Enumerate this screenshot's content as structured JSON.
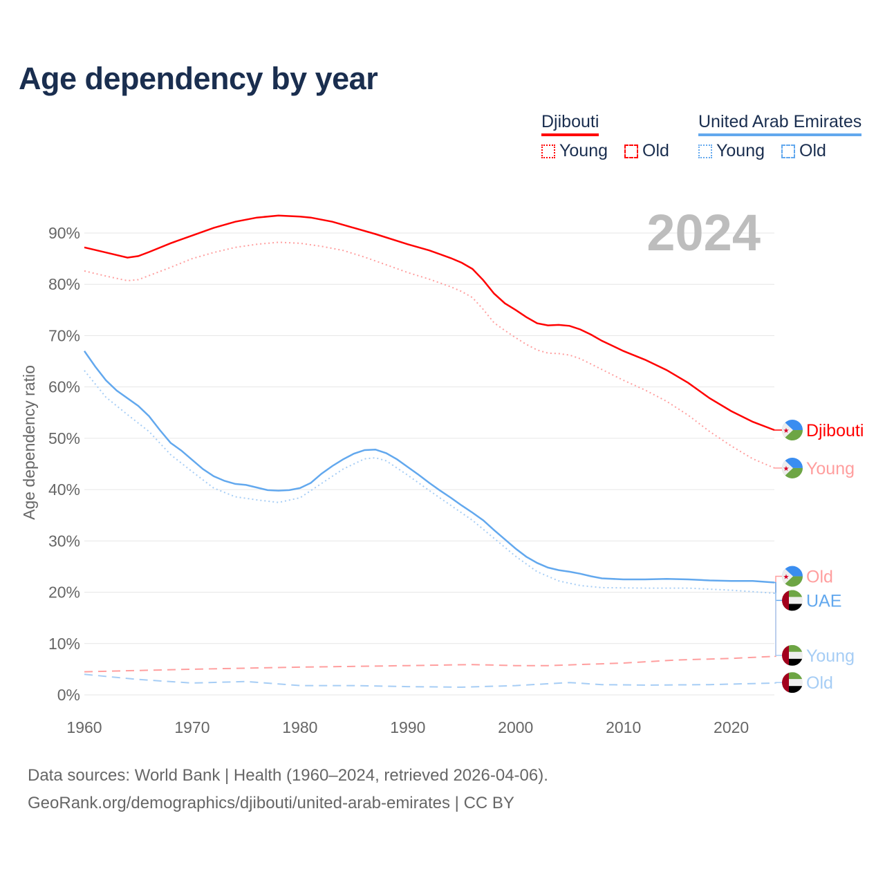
{
  "title": "Age dependency by year",
  "legend": {
    "countries": [
      {
        "name": "Djibouti",
        "color": "#ff0000",
        "items": [
          "Young",
          "Old"
        ]
      },
      {
        "name": "United Arab Emirates",
        "color": "#62a8ee",
        "items": [
          "Young",
          "Old"
        ]
      }
    ]
  },
  "footer": {
    "line1": "Data sources: World Bank | Health (1960–2024, retrieved 2026-04-06).",
    "line2": "GeoRank.org/demographics/djibouti/united-arab-emirates | CC BY"
  },
  "chart_data": {
    "type": "line",
    "title": "Age dependency by year",
    "ylabel": "Age dependency ratio",
    "xlabel": "",
    "year_label": "2024",
    "xlim": [
      1960,
      2024
    ],
    "ylim": [
      0,
      90
    ],
    "x_ticks": [
      "1960",
      "1970",
      "1980",
      "1990",
      "2000",
      "2010",
      "2020"
    ],
    "y_ticks": [
      "0%",
      "10%",
      "20%",
      "30%",
      "40%",
      "50%",
      "60%",
      "70%",
      "80%",
      "90%"
    ],
    "grid": true,
    "series": [
      {
        "name": "Djibouti",
        "end_label": "Djibouti",
        "color": "#ff0000",
        "dash": "solid",
        "flag": "djibouti",
        "points": [
          [
            1960,
            87.2
          ],
          [
            1962,
            86.2
          ],
          [
            1964,
            85.2
          ],
          [
            1965,
            85.5
          ],
          [
            1966,
            86.3
          ],
          [
            1968,
            88
          ],
          [
            1970,
            89.5
          ],
          [
            1972,
            91
          ],
          [
            1974,
            92.2
          ],
          [
            1976,
            93
          ],
          [
            1978,
            93.4
          ],
          [
            1980,
            93.2
          ],
          [
            1981,
            93
          ],
          [
            1983,
            92.2
          ],
          [
            1985,
            91
          ],
          [
            1987,
            89.8
          ],
          [
            1990,
            87.8
          ],
          [
            1992,
            86.6
          ],
          [
            1994,
            85.1
          ],
          [
            1995,
            84.2
          ],
          [
            1996,
            83
          ],
          [
            1997,
            80.8
          ],
          [
            1998,
            78.2
          ],
          [
            1999,
            76.3
          ],
          [
            2000,
            75
          ],
          [
            2001,
            73.6
          ],
          [
            2002,
            72.4
          ],
          [
            2003,
            72
          ],
          [
            2004,
            72.1
          ],
          [
            2005,
            71.9
          ],
          [
            2006,
            71.2
          ],
          [
            2007,
            70.2
          ],
          [
            2008,
            69
          ],
          [
            2009,
            68
          ],
          [
            2010,
            67
          ],
          [
            2012,
            65.3
          ],
          [
            2014,
            63.3
          ],
          [
            2016,
            60.8
          ],
          [
            2018,
            57.8
          ],
          [
            2020,
            55.3
          ],
          [
            2022,
            53.2
          ],
          [
            2024,
            51.6
          ]
        ]
      },
      {
        "name": "Djibouti Young",
        "end_label": "Young",
        "color": "#ff9e9e",
        "dash": "dotted",
        "flag": "djibouti",
        "points": [
          [
            1960,
            82.6
          ],
          [
            1962,
            81.6
          ],
          [
            1964,
            80.7
          ],
          [
            1965,
            80.9
          ],
          [
            1966,
            81.7
          ],
          [
            1968,
            83.3
          ],
          [
            1970,
            85
          ],
          [
            1972,
            86.2
          ],
          [
            1974,
            87.2
          ],
          [
            1976,
            87.8
          ],
          [
            1978,
            88.2
          ],
          [
            1980,
            88
          ],
          [
            1982,
            87.4
          ],
          [
            1984,
            86.6
          ],
          [
            1986,
            85.3
          ],
          [
            1988,
            83.8
          ],
          [
            1990,
            82.3
          ],
          [
            1992,
            81
          ],
          [
            1994,
            79.5
          ],
          [
            1995,
            78.6
          ],
          [
            1996,
            77.4
          ],
          [
            1997,
            75.1
          ],
          [
            1998,
            72.5
          ],
          [
            1999,
            71
          ],
          [
            2000,
            69.6
          ],
          [
            2001,
            68.3
          ],
          [
            2002,
            67.2
          ],
          [
            2003,
            66.6
          ],
          [
            2004,
            66.5
          ],
          [
            2005,
            66.2
          ],
          [
            2006,
            65.5
          ],
          [
            2008,
            63.4
          ],
          [
            2010,
            61.3
          ],
          [
            2012,
            59.4
          ],
          [
            2014,
            57.2
          ],
          [
            2016,
            54.5
          ],
          [
            2018,
            51.3
          ],
          [
            2020,
            48.5
          ],
          [
            2022,
            46
          ],
          [
            2024,
            44.2
          ]
        ]
      },
      {
        "name": "Djibouti Old",
        "end_label": "Old",
        "color": "#ff9e9e",
        "dash": "dashed",
        "flag": "djibouti",
        "points": [
          [
            1960,
            4.5
          ],
          [
            1970,
            5
          ],
          [
            1980,
            5.4
          ],
          [
            1990,
            5.7
          ],
          [
            1996,
            5.9
          ],
          [
            2000,
            5.7
          ],
          [
            2003,
            5.7
          ],
          [
            2010,
            6.2
          ],
          [
            2015,
            6.8
          ],
          [
            2020,
            7.1
          ],
          [
            2024,
            7.5
          ]
        ]
      },
      {
        "name": "United Arab Emirates",
        "end_label": "UAE",
        "color": "#62a8ee",
        "dash": "solid",
        "flag": "uae",
        "points": [
          [
            1960,
            67
          ],
          [
            1961,
            64
          ],
          [
            1962,
            61.3
          ],
          [
            1963,
            59.3
          ],
          [
            1965,
            56.3
          ],
          [
            1966,
            54.3
          ],
          [
            1967,
            51.6
          ],
          [
            1968,
            49.1
          ],
          [
            1969,
            47.6
          ],
          [
            1970,
            45.8
          ],
          [
            1971,
            44
          ],
          [
            1972,
            42.6
          ],
          [
            1973,
            41.7
          ],
          [
            1974,
            41.1
          ],
          [
            1975,
            40.9
          ],
          [
            1976,
            40.4
          ],
          [
            1977,
            39.9
          ],
          [
            1978,
            39.8
          ],
          [
            1979,
            39.9
          ],
          [
            1980,
            40.3
          ],
          [
            1981,
            41.3
          ],
          [
            1982,
            43.1
          ],
          [
            1983,
            44.6
          ],
          [
            1984,
            45.9
          ],
          [
            1985,
            47
          ],
          [
            1986,
            47.7
          ],
          [
            1987,
            47.8
          ],
          [
            1988,
            47.1
          ],
          [
            1989,
            45.9
          ],
          [
            1990,
            44.4
          ],
          [
            1991,
            42.9
          ],
          [
            1992,
            41.3
          ],
          [
            1993,
            39.8
          ],
          [
            1994,
            38.4
          ],
          [
            1995,
            36.9
          ],
          [
            1996,
            35.5
          ],
          [
            1997,
            34
          ],
          [
            1998,
            32.1
          ],
          [
            1999,
            30.3
          ],
          [
            2000,
            28.5
          ],
          [
            2001,
            26.9
          ],
          [
            2002,
            25.7
          ],
          [
            2003,
            24.8
          ],
          [
            2004,
            24.3
          ],
          [
            2005,
            24
          ],
          [
            2006,
            23.6
          ],
          [
            2007,
            23.1
          ],
          [
            2008,
            22.7
          ],
          [
            2010,
            22.5
          ],
          [
            2012,
            22.5
          ],
          [
            2014,
            22.6
          ],
          [
            2016,
            22.5
          ],
          [
            2018,
            22.3
          ],
          [
            2020,
            22.2
          ],
          [
            2022,
            22.2
          ],
          [
            2024,
            21.9
          ]
        ]
      },
      {
        "name": "United Arab Emirates Young",
        "end_label": "Young",
        "color": "#a6cdf5",
        "dash": "dotted",
        "flag": "uae",
        "points": [
          [
            1960,
            63.2
          ],
          [
            1962,
            58
          ],
          [
            1964,
            54.6
          ],
          [
            1966,
            51.3
          ],
          [
            1968,
            46.8
          ],
          [
            1970,
            43.5
          ],
          [
            1972,
            40.3
          ],
          [
            1974,
            38.6
          ],
          [
            1976,
            38
          ],
          [
            1978,
            37.5
          ],
          [
            1980,
            38.4
          ],
          [
            1982,
            41.2
          ],
          [
            1984,
            44
          ],
          [
            1986,
            46
          ],
          [
            1987,
            46.2
          ],
          [
            1988,
            45.6
          ],
          [
            1990,
            42.8
          ],
          [
            1992,
            39.8
          ],
          [
            1994,
            36.9
          ],
          [
            1996,
            34
          ],
          [
            1998,
            30.5
          ],
          [
            2000,
            27
          ],
          [
            2002,
            24
          ],
          [
            2004,
            22.2
          ],
          [
            2006,
            21.3
          ],
          [
            2008,
            20.9
          ],
          [
            2012,
            20.8
          ],
          [
            2016,
            20.8
          ],
          [
            2020,
            20.4
          ],
          [
            2024,
            19.8
          ]
        ]
      },
      {
        "name": "United Arab Emirates Old",
        "end_label": "Old",
        "color": "#a6cdf5",
        "dash": "dashed",
        "flag": "uae",
        "points": [
          [
            1960,
            4
          ],
          [
            1965,
            3
          ],
          [
            1970,
            2.3
          ],
          [
            1975,
            2.6
          ],
          [
            1980,
            1.8
          ],
          [
            1985,
            1.8
          ],
          [
            1990,
            1.6
          ],
          [
            1995,
            1.5
          ],
          [
            2000,
            1.8
          ],
          [
            2005,
            2.4
          ],
          [
            2008,
            2
          ],
          [
            2012,
            1.9
          ],
          [
            2018,
            2
          ],
          [
            2024,
            2.3
          ]
        ]
      }
    ],
    "end_label_positions_pct": [
      51.6,
      44.2,
      23.1,
      18.4,
      7.7,
      2.4
    ]
  }
}
